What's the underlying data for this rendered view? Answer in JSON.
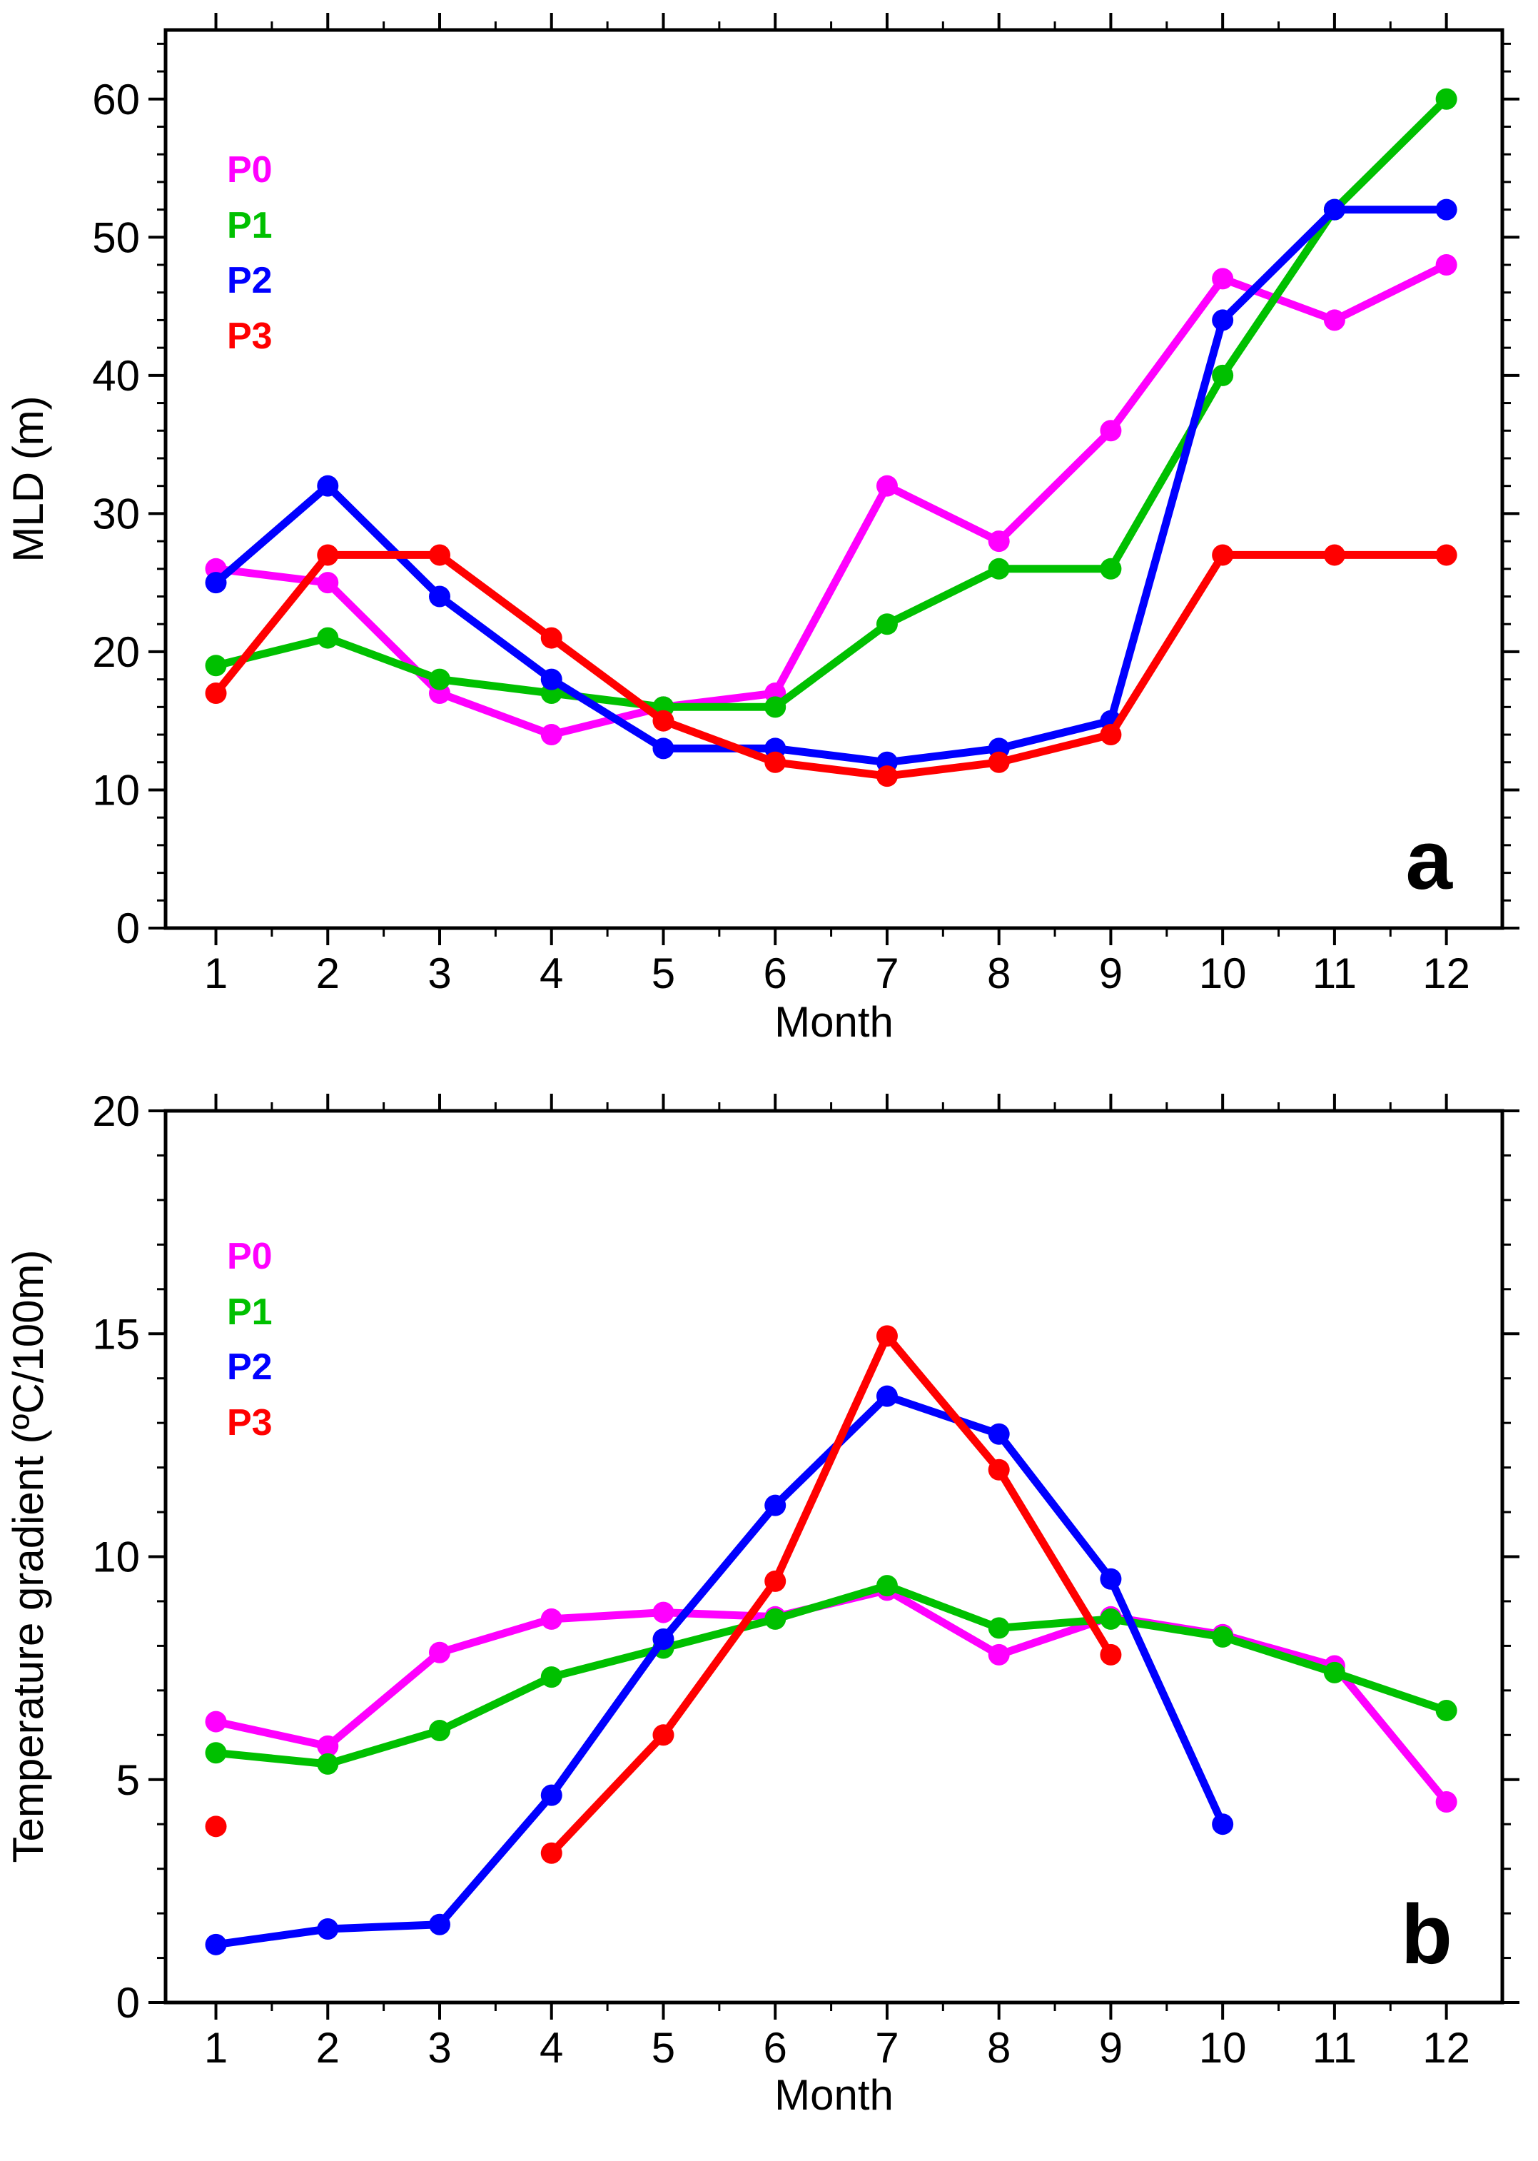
{
  "chart_data": [
    {
      "type": "line",
      "panel_label": "a",
      "xlabel": "Month",
      "ylabel": "MLD (m)",
      "xlim": [
        0.55,
        12.5
      ],
      "ylim": [
        0,
        65
      ],
      "xticks": [
        1,
        2,
        3,
        4,
        5,
        6,
        7,
        8,
        9,
        10,
        11,
        12
      ],
      "xtick_labels": [
        "1",
        "2",
        "3",
        "4",
        "5",
        "6",
        "7",
        "8",
        "9",
        "10",
        "11",
        "12"
      ],
      "yticks": [
        0,
        10,
        20,
        30,
        40,
        50,
        60
      ],
      "ytick_labels": [
        "0",
        "10",
        "20",
        "30",
        "40",
        "50",
        "60"
      ],
      "legend_position": "top-left",
      "series": [
        {
          "name": "P0",
          "color": "#ff00ff",
          "x": [
            1,
            2,
            3,
            4,
            5,
            6,
            7,
            8,
            9,
            10,
            11,
            12
          ],
          "values": [
            26,
            25,
            17,
            14,
            16,
            17,
            32,
            28,
            36,
            47,
            44,
            48
          ]
        },
        {
          "name": "P1",
          "color": "#00c000",
          "x": [
            1,
            2,
            3,
            4,
            5,
            6,
            7,
            8,
            9,
            10,
            11,
            12
          ],
          "values": [
            19,
            21,
            18,
            17,
            16,
            16,
            22,
            26,
            26,
            40,
            52,
            60
          ]
        },
        {
          "name": "P2",
          "color": "#0000ff",
          "x": [
            1,
            2,
            3,
            4,
            5,
            6,
            7,
            8,
            9,
            10,
            11,
            12
          ],
          "values": [
            25,
            32,
            24,
            18,
            13,
            13,
            12,
            13,
            15,
            44,
            52,
            52
          ]
        },
        {
          "name": "P3",
          "color": "#ff0000",
          "x": [
            1,
            2,
            3,
            4,
            5,
            6,
            7,
            8,
            9,
            10,
            11,
            12
          ],
          "values": [
            17,
            27,
            27,
            21,
            15,
            12,
            11,
            12,
            14,
            27,
            27,
            27
          ]
        }
      ]
    },
    {
      "type": "line",
      "panel_label": "b",
      "xlabel": "Month",
      "ylabel": "Temperature gradient (ºC/100m)",
      "xlim": [
        0.55,
        12.5
      ],
      "ylim": [
        0,
        20
      ],
      "xticks": [
        1,
        2,
        3,
        4,
        5,
        6,
        7,
        8,
        9,
        10,
        11,
        12
      ],
      "xtick_labels": [
        "1",
        "2",
        "3",
        "4",
        "5",
        "6",
        "7",
        "8",
        "9",
        "10",
        "11",
        "12"
      ],
      "yticks": [
        0,
        5,
        10,
        15,
        20
      ],
      "ytick_labels": [
        "0",
        "5",
        "10",
        "15",
        "20"
      ],
      "legend_position": "center-left",
      "series": [
        {
          "name": "P0",
          "color": "#ff00ff",
          "x": [
            1,
            2,
            3,
            4,
            5,
            6,
            7,
            8,
            9,
            10,
            11,
            12
          ],
          "values": [
            6.3,
            5.75,
            7.85,
            8.6,
            8.75,
            8.65,
            9.25,
            7.8,
            8.65,
            8.25,
            7.55,
            4.5
          ]
        },
        {
          "name": "P1",
          "color": "#00c000",
          "x": [
            1,
            2,
            3,
            4,
            5,
            6,
            7,
            8,
            9,
            10,
            11,
            12
          ],
          "values": [
            5.6,
            5.35,
            6.1,
            7.3,
            7.95,
            8.6,
            9.35,
            8.4,
            8.6,
            8.2,
            7.4,
            6.55
          ]
        },
        {
          "name": "P2",
          "color": "#0000ff",
          "x": [
            1,
            2,
            3,
            4,
            5,
            6,
            7,
            8,
            9,
            10
          ],
          "values": [
            1.3,
            1.65,
            1.75,
            4.65,
            8.15,
            11.15,
            13.6,
            12.75,
            9.5,
            4.0
          ]
        },
        {
          "name": "P3",
          "color": "#ff0000",
          "x": [
            1
          ],
          "values": [
            3.95
          ],
          "segments": [
            {
              "x": [
                4,
                5,
                6,
                7,
                8,
                9
              ],
              "values": [
                3.35,
                6.0,
                9.45,
                14.95,
                11.95,
                7.8
              ]
            }
          ]
        }
      ]
    }
  ]
}
